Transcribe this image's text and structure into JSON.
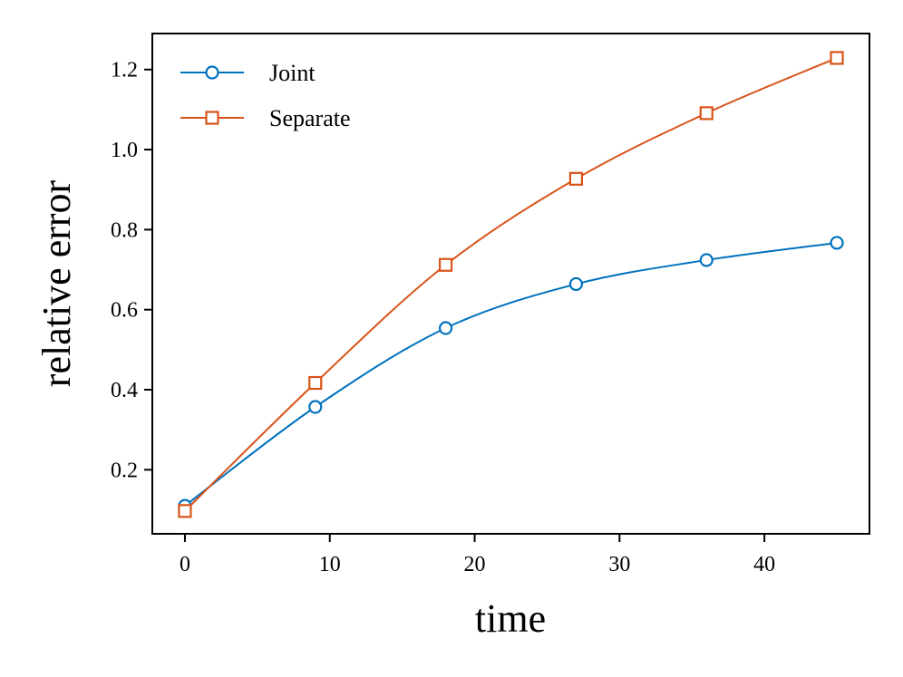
{
  "chart_data": {
    "type": "line",
    "title": "",
    "xlabel": "time",
    "ylabel": "relative error",
    "xlim": [
      -2.25,
      47.25
    ],
    "ylim": [
      0.04,
      1.29
    ],
    "xticks": [
      0,
      10,
      20,
      30,
      40
    ],
    "yticks": [
      0.2,
      0.4,
      0.6,
      0.8,
      1.0,
      1.2
    ],
    "xtick_labels": [
      "0",
      "10",
      "20",
      "30",
      "40"
    ],
    "ytick_labels": [
      "0.2",
      "0.4",
      "0.6",
      "0.8",
      "1.0",
      "1.2"
    ],
    "grid": false,
    "legend_position": "top-left",
    "series": [
      {
        "name": "Joint",
        "color": "#0072BD",
        "marker": "circle",
        "x": [
          0,
          9,
          18,
          27,
          36,
          45
        ],
        "y": [
          0.11,
          0.357,
          0.554,
          0.664,
          0.724,
          0.767
        ]
      },
      {
        "name": "Separate",
        "color": "#D95319",
        "marker": "square",
        "x": [
          0,
          9,
          18,
          27,
          36,
          45
        ],
        "y": [
          0.097,
          0.417,
          0.712,
          0.927,
          1.091,
          1.229
        ]
      }
    ]
  }
}
